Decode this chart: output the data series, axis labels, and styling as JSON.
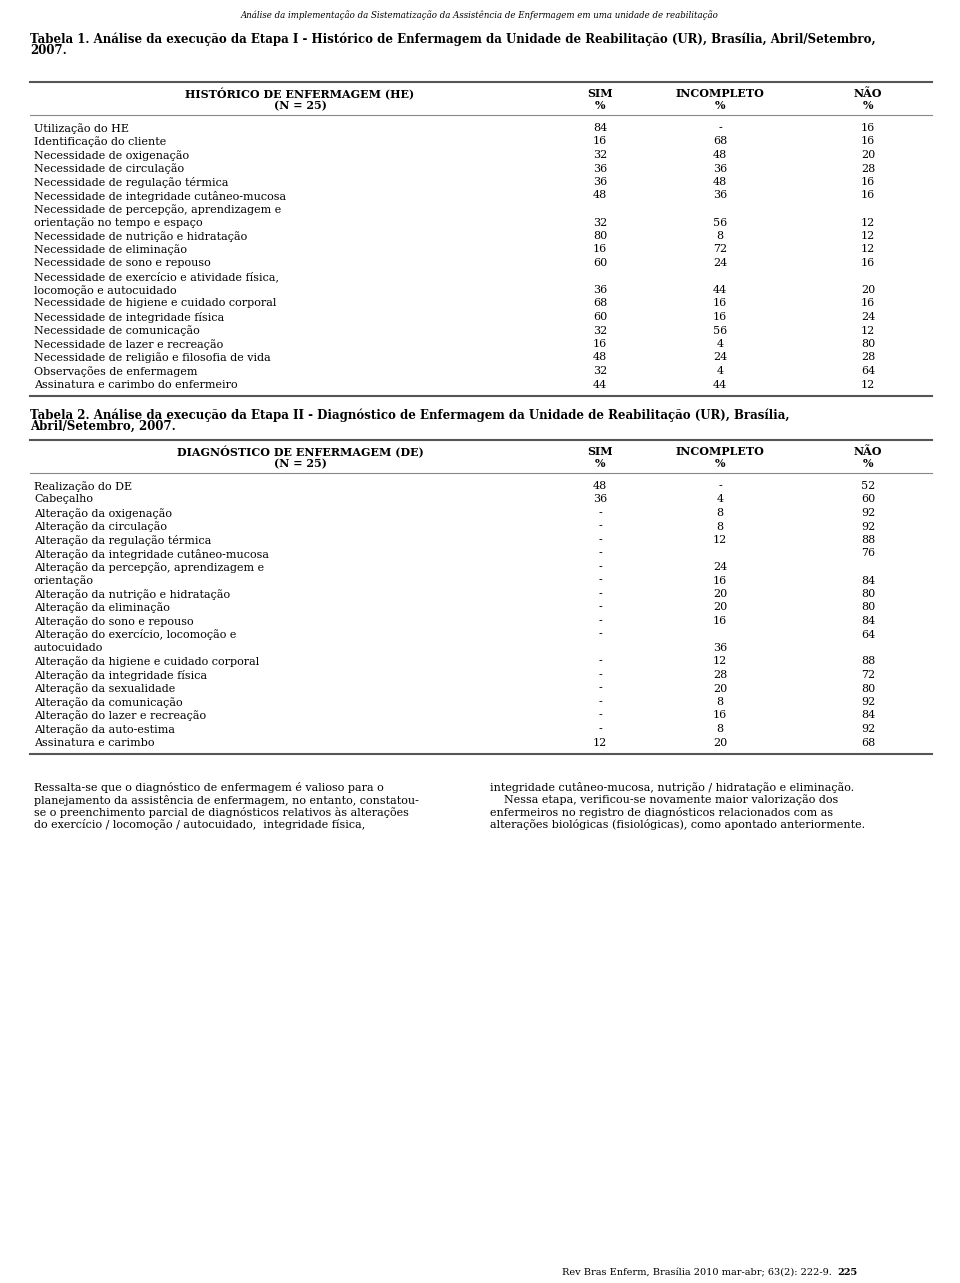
{
  "page_title": "Análise da implementação da Sistematização da Assistência de Enfermagem em uma unidade de reabilitação",
  "table1_title_line1": "Tabela 1. Análise da execução da Etapa I - Histórico de Enfermagem da Unidade de Reabilitação (UR), Brasília, Abril/Setembro,",
  "table1_title_line2": "2007.",
  "table1_header_col1_line1": "HISTÓRICO DE ENFERMAGEM (HE)",
  "table1_header_col1_line2": "(N = 25)",
  "table1_header_sim_line1": "SIM",
  "table1_header_sim_line2": "%",
  "table1_header_inc_line1": "INCOMPLETO",
  "table1_header_inc_line2": "%",
  "table1_header_nao_line1": "NÃO",
  "table1_header_nao_line2": "%",
  "table1_rows": [
    {
      "lines": [
        "Utilização do HE"
      ],
      "sim": "84",
      "inc": "-",
      "nao": "16",
      "val_line": 0
    },
    {
      "lines": [
        "Identificação do cliente"
      ],
      "sim": "16",
      "inc": "68",
      "nao": "16",
      "val_line": 0
    },
    {
      "lines": [
        "Necessidade de oxigenação"
      ],
      "sim": "32",
      "inc": "48",
      "nao": "20",
      "val_line": 0
    },
    {
      "lines": [
        "Necessidade de circulação"
      ],
      "sim": "36",
      "inc": "36",
      "nao": "28",
      "val_line": 0
    },
    {
      "lines": [
        "Necessidade de regulação térmica"
      ],
      "sim": "36",
      "inc": "48",
      "nao": "16",
      "val_line": 0
    },
    {
      "lines": [
        "Necessidade de integridade cutâneo-mucosa"
      ],
      "sim": "48",
      "inc": "36",
      "nao": "16",
      "val_line": 0
    },
    {
      "lines": [
        "Necessidade de percepção, aprendizagem e",
        "orientação no tempo e espaço"
      ],
      "sim": "32",
      "inc": "56",
      "nao": "12",
      "val_line": 1
    },
    {
      "lines": [
        "Necessidade de nutrição e hidratação"
      ],
      "sim": "80",
      "inc": "8",
      "nao": "12",
      "val_line": 0
    },
    {
      "lines": [
        "Necessidade de eliminação"
      ],
      "sim": "16",
      "inc": "72",
      "nao": "12",
      "val_line": 0
    },
    {
      "lines": [
        "Necessidade de sono e repouso"
      ],
      "sim": "60",
      "inc": "24",
      "nao": "16",
      "val_line": 0
    },
    {
      "lines": [
        "Necessidade de exercício e atividade física,",
        "locomoção e autocuidado"
      ],
      "sim": "36",
      "inc": "44",
      "nao": "20",
      "val_line": 1
    },
    {
      "lines": [
        "Necessidade de higiene e cuidado corporal"
      ],
      "sim": "68",
      "inc": "16",
      "nao": "16",
      "val_line": 0
    },
    {
      "lines": [
        "Necessidade de integridade física"
      ],
      "sim": "60",
      "inc": "16",
      "nao": "24",
      "val_line": 0
    },
    {
      "lines": [
        "Necessidade de comunicação"
      ],
      "sim": "32",
      "inc": "56",
      "nao": "12",
      "val_line": 0
    },
    {
      "lines": [
        "Necessidade de lazer e recreação"
      ],
      "sim": "16",
      "inc": "4",
      "nao": "80",
      "val_line": 0
    },
    {
      "lines": [
        "Necessidade de religião e filosofia de vida"
      ],
      "sim": "48",
      "inc": "24",
      "nao": "28",
      "val_line": 0
    },
    {
      "lines": [
        "Observações de enfermagem"
      ],
      "sim": "32",
      "inc": "4",
      "nao": "64",
      "val_line": 0
    },
    {
      "lines": [
        "Assinatura e carimbo do enfermeiro"
      ],
      "sim": "44",
      "inc": "44",
      "nao": "12",
      "val_line": 0
    }
  ],
  "table2_title_line1": "Tabela 2. Análise da execução da Etapa II - Diagnóstico de Enfermagem da Unidade de Reabilitação (UR), Brasília,",
  "table2_title_line2": "Abril/Setembro, 2007.",
  "table2_header_col1_line1": "DIAGNÓSTICO DE ENFERMAGEM (DE)",
  "table2_header_col1_line2": "(N = 25)",
  "table2_header_sim_line1": "SIM",
  "table2_header_sim_line2": "%",
  "table2_header_inc_line1": "INCOMPLETO",
  "table2_header_inc_line2": "%",
  "table2_header_nao_line1": "NÃO",
  "table2_header_nao_line2": "%",
  "table2_rows": [
    {
      "lines": [
        "Realização do DE"
      ],
      "sim": "48",
      "inc": "-",
      "nao": "52",
      "val_line": 0
    },
    {
      "lines": [
        "Cabeçalho"
      ],
      "sim": "36",
      "inc": "4",
      "nao": "60",
      "val_line": 0
    },
    {
      "lines": [
        "Alteração da oxigenação"
      ],
      "sim": "-",
      "inc": "8",
      "nao": "92",
      "val_line": 0
    },
    {
      "lines": [
        "Alteração da circulação"
      ],
      "sim": "-",
      "inc": "8",
      "nao": "92",
      "val_line": 0
    },
    {
      "lines": [
        "Alteração da regulação térmica"
      ],
      "sim": "-",
      "inc": "12",
      "nao": "88",
      "val_line": 0
    },
    {
      "lines": [
        "Alteração da integridade cutâneo-mucosa"
      ],
      "sim": "-",
      "inc": "",
      "nao": "76",
      "val_line": 0
    },
    {
      "lines": [
        "Alteração da percepção, aprendizagem e",
        "orientação"
      ],
      "sim": "-",
      "sim_line": 0,
      "inc_line0": "24",
      "inc": "16",
      "nao": "84",
      "nao_line": 1,
      "val_line": 1,
      "special": true
    },
    {
      "lines": [
        "Alteração da nutrição e hidratação"
      ],
      "sim": "-",
      "inc": "20",
      "nao": "80",
      "val_line": 0
    },
    {
      "lines": [
        "Alteração da eliminação"
      ],
      "sim": "-",
      "inc": "20",
      "nao": "80",
      "val_line": 0
    },
    {
      "lines": [
        "Alteração do sono e repouso"
      ],
      "sim": "-",
      "inc": "16",
      "nao": "84",
      "val_line": 0
    },
    {
      "lines": [
        "Alteração do exercício, locomoção e",
        "autocuidado"
      ],
      "sim": "-",
      "sim_line": 0,
      "inc_line0": "",
      "inc": "36",
      "nao": "64",
      "nao_line": 0,
      "val_line": 1,
      "special2": true
    },
    {
      "lines": [
        "Alteração da higiene e cuidado corporal"
      ],
      "sim": "-",
      "inc": "12",
      "nao": "88",
      "val_line": 0
    },
    {
      "lines": [
        "Alteração da integridade física"
      ],
      "sim": "-",
      "inc": "28",
      "nao": "72",
      "val_line": 0
    },
    {
      "lines": [
        "Alteração da sexualidade"
      ],
      "sim": "-",
      "inc": "20",
      "nao": "80",
      "val_line": 0
    },
    {
      "lines": [
        "Alteração da comunicação"
      ],
      "sim": "-",
      "inc": "8",
      "nao": "92",
      "val_line": 0
    },
    {
      "lines": [
        "Alteração do lazer e recreação"
      ],
      "sim": "-",
      "inc": "16",
      "nao": "84",
      "val_line": 0
    },
    {
      "lines": [
        "Alteração da auto-estima"
      ],
      "sim": "-",
      "inc": "8",
      "nao": "92",
      "val_line": 0
    },
    {
      "lines": [
        "Assinatura e carimbo"
      ],
      "sim": "12",
      "inc": "20",
      "nao": "68",
      "val_line": 0
    }
  ],
  "footer_left_lines": [
    "Ressalta-se que o diagnóstico de enfermagem é valioso para o",
    "planejamento da assistência de enfermagem, no entanto, constatou-",
    "se o preenchimento parcial de diagnósticos relativos às alterações",
    "do exercício / locomoção / autocuidado,  integridade física,"
  ],
  "footer_right_lines": [
    "integridade cutâneo-mucosa, nutrição / hidratação e eliminação.",
    "    Nessa etapa, verificou-se novamente maior valorização dos",
    "enfermeiros no registro de diagnósticos relacionados com as",
    "alterações biológicas (fisiológicas), como apontado anteriormente."
  ],
  "page_number_left": "Rev Bras Enferm, Brasília 2010 mar-abr; 63(2): 222-9.",
  "page_number_right": "225",
  "bg_color": "#ffffff",
  "text_color": "#000000",
  "line_color": "#aaaaaa"
}
